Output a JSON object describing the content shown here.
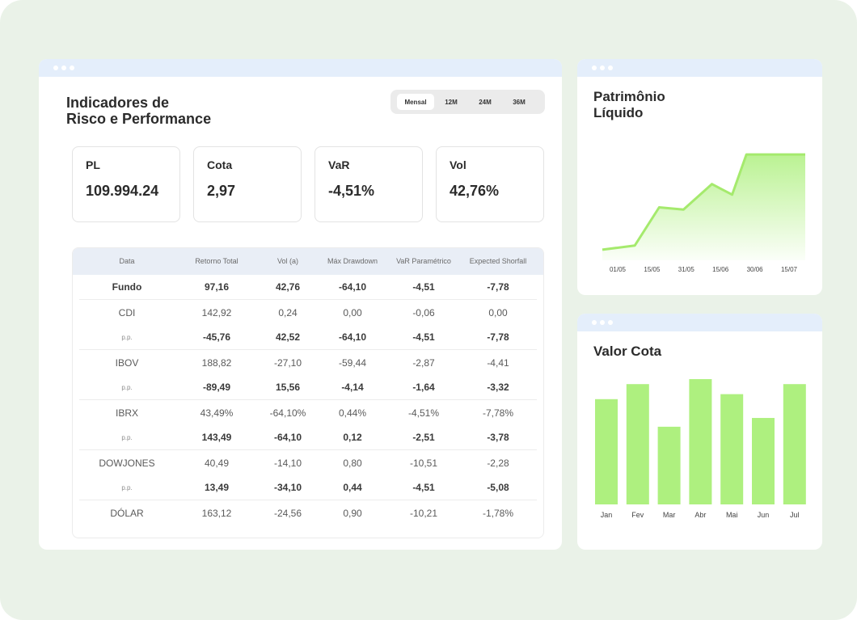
{
  "main": {
    "title_line1": "Indicadores de",
    "title_line2": "Risco e Performance",
    "periods": [
      "Mensal",
      "12M",
      "24M",
      "36M"
    ],
    "active_period": "Mensal",
    "kpis": [
      {
        "label": "PL",
        "value": "109.994.24"
      },
      {
        "label": "Cota",
        "value": "2,97"
      },
      {
        "label": "VaR",
        "value": "-4,51%"
      },
      {
        "label": "Vol",
        "value": "42,76%"
      }
    ],
    "table": {
      "headers": [
        "Data",
        "Retorno Total",
        "Vol (a)",
        "Máx Drawdown",
        "VaR Paramétrico",
        "Expected Shorfall"
      ],
      "rows": [
        {
          "cells": [
            "Fundo",
            "97,16",
            "42,76",
            "-64,10",
            "-4,51",
            "-7,78"
          ],
          "bold": true
        },
        {
          "cells": [
            "CDI",
            "142,92",
            "0,24",
            "0,00",
            "-0,06",
            "0,00"
          ],
          "bold": false
        },
        {
          "cells": [
            "p.p.",
            "-45,76",
            "42,52",
            "-64,10",
            "-4,51",
            "-7,78"
          ],
          "bold": true
        },
        {
          "cells": [
            "IBOV",
            "188,82",
            "-27,10",
            "-59,44",
            "-2,87",
            "-4,41"
          ],
          "bold": false
        },
        {
          "cells": [
            "p.p.",
            "-89,49",
            "15,56",
            "-4,14",
            "-1,64",
            "-3,32"
          ],
          "bold": true
        },
        {
          "cells": [
            "IBRX",
            "43,49%",
            "-64,10%",
            "0,44%",
            "-4,51%",
            "-7,78%"
          ],
          "bold": false
        },
        {
          "cells": [
            "p.p.",
            "143,49",
            "-64,10",
            "0,12",
            "-2,51",
            "-3,78"
          ],
          "bold": true
        },
        {
          "cells": [
            "DOWJONES",
            "40,49",
            "-14,10",
            "0,80",
            "-10,51",
            "-2,28"
          ],
          "bold": false
        },
        {
          "cells": [
            "p.p.",
            "13,49",
            "-34,10",
            "0,44",
            "-4,51",
            "-5,08"
          ],
          "bold": true
        },
        {
          "cells": [
            "DÓLAR",
            "163,12",
            "-24,56",
            "0,90",
            "-10,21",
            "-1,78%"
          ],
          "bold": false
        }
      ]
    }
  },
  "pl_window": {
    "title_line1": "Patrimônio",
    "title_line2": "Líquido"
  },
  "vc_window": {
    "title": "Valor Cota"
  },
  "colors": {
    "accent": "#aef07f",
    "line": "#a5ea6d",
    "window_bar": "#e4eefb",
    "background": "#eaf2e8"
  },
  "chart_data": [
    {
      "type": "area",
      "title": "Patrimônio Líquido",
      "x": [
        "01/05",
        "15/05",
        "31/05",
        "15/06",
        "30/06",
        "15/07"
      ],
      "x_tick_labels": [
        "01/05",
        "15/05",
        "31/05",
        "15/06",
        "30/06",
        "15/07"
      ],
      "points": [
        {
          "t": 0.0,
          "v": 10
        },
        {
          "t": 0.16,
          "v": 14
        },
        {
          "t": 0.28,
          "v": 50
        },
        {
          "t": 0.4,
          "v": 48
        },
        {
          "t": 0.54,
          "v": 72
        },
        {
          "t": 0.64,
          "v": 62
        },
        {
          "t": 0.71,
          "v": 100
        },
        {
          "t": 1.0,
          "v": 100
        }
      ],
      "ylim": [
        0,
        110
      ],
      "grid": false,
      "legend": "none"
    },
    {
      "type": "bar",
      "title": "Valor Cota",
      "categories": [
        "Jan",
        "Fev",
        "Mar",
        "Abr",
        "Mai",
        "Jun",
        "Jul"
      ],
      "values": [
        84,
        96,
        62,
        100,
        88,
        69,
        96
      ],
      "ylim": [
        0,
        100
      ],
      "grid": false,
      "legend": "none"
    }
  ]
}
